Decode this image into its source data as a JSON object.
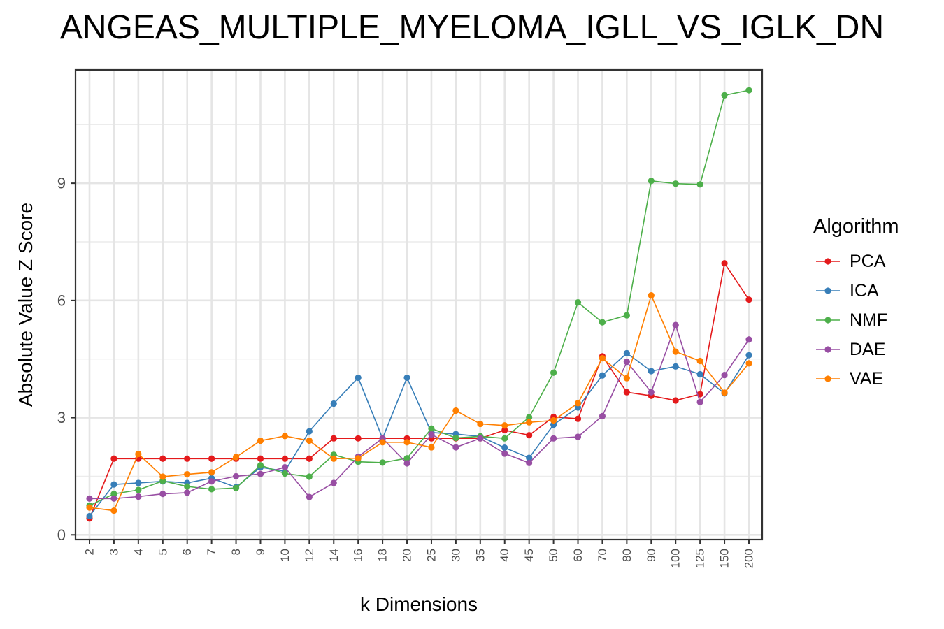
{
  "chart_data": {
    "type": "line",
    "title": "ANGEAS_MULTIPLE_MYELOMA_IGLL_VS_IGLK_DN",
    "xlabel": "k Dimensions",
    "ylabel": "Absolute Value Z Score",
    "categories": [
      "2",
      "3",
      "4",
      "5",
      "6",
      "7",
      "8",
      "9",
      "10",
      "12",
      "14",
      "16",
      "18",
      "20",
      "25",
      "30",
      "35",
      "40",
      "45",
      "50",
      "60",
      "70",
      "80",
      "90",
      "100",
      "125",
      "150",
      "200"
    ],
    "yticks": [
      0,
      3,
      6,
      9
    ],
    "ylim": [
      -0.12,
      11.9
    ],
    "grid": true,
    "legend": {
      "title": "Algorithm",
      "position": "right"
    },
    "series": [
      {
        "name": "PCA",
        "color": "#e41a1c",
        "values": [
          0.42,
          1.95,
          1.95,
          1.95,
          1.95,
          1.95,
          1.95,
          1.95,
          1.95,
          1.95,
          2.47,
          2.47,
          2.47,
          2.47,
          2.47,
          2.47,
          2.47,
          2.68,
          2.55,
          3.02,
          2.97,
          4.57,
          3.65,
          3.56,
          3.44,
          3.6,
          6.95,
          6.02
        ]
      },
      {
        "name": "ICA",
        "color": "#377eb8",
        "values": [
          0.48,
          1.29,
          1.33,
          1.37,
          1.33,
          1.45,
          1.22,
          1.73,
          1.63,
          2.65,
          3.36,
          4.02,
          2.47,
          4.02,
          2.62,
          2.58,
          2.52,
          2.23,
          1.97,
          2.82,
          3.26,
          4.08,
          4.65,
          4.19,
          4.31,
          4.11,
          3.62,
          4.6
        ]
      },
      {
        "name": "NMF",
        "color": "#4daf4a",
        "values": [
          0.75,
          1.05,
          1.15,
          1.38,
          1.24,
          1.17,
          1.2,
          1.78,
          1.57,
          1.49,
          2.05,
          1.87,
          1.85,
          1.96,
          2.72,
          2.48,
          2.52,
          2.47,
          3.01,
          4.15,
          5.95,
          5.44,
          5.62,
          9.06,
          8.99,
          8.97,
          11.25,
          11.38
        ]
      },
      {
        "name": "DAE",
        "color": "#984ea3",
        "values": [
          0.93,
          0.93,
          0.98,
          1.05,
          1.08,
          1.37,
          1.5,
          1.56,
          1.73,
          0.97,
          1.33,
          2.0,
          2.47,
          1.83,
          2.57,
          2.24,
          2.47,
          2.08,
          1.84,
          2.47,
          2.51,
          3.04,
          4.43,
          3.65,
          5.37,
          3.4,
          4.09,
          5.0
        ]
      },
      {
        "name": "VAE",
        "color": "#ff7f00",
        "values": [
          0.7,
          0.62,
          2.07,
          1.49,
          1.55,
          1.6,
          1.99,
          2.41,
          2.53,
          2.41,
          1.95,
          1.96,
          2.37,
          2.37,
          2.24,
          3.18,
          2.84,
          2.8,
          2.88,
          2.93,
          3.37,
          4.52,
          4.01,
          6.13,
          4.69,
          4.45,
          3.64,
          4.39
        ]
      }
    ]
  }
}
